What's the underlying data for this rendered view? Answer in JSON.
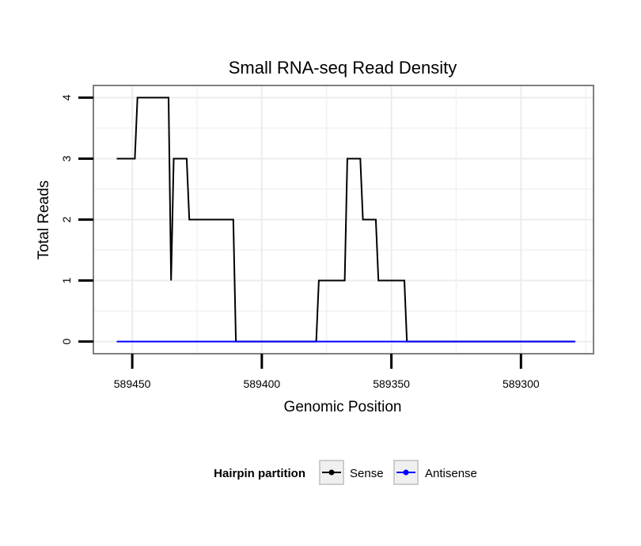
{
  "chart_data": {
    "type": "line",
    "title": "Small RNA-seq Read Density",
    "xlabel": "Genomic Position",
    "ylabel": "Total Reads",
    "x_reversed": true,
    "xlim": [
      589465,
      589272
    ],
    "ylim": [
      -0.2,
      4.2
    ],
    "x_ticks": [
      589450,
      589400,
      589350,
      589300
    ],
    "x_tick_labels": [
      "589450",
      "589400",
      "589350",
      "589300"
    ],
    "y_ticks": [
      0,
      1,
      2,
      3,
      4
    ],
    "y_tick_labels": [
      "0",
      "1",
      "2",
      "3",
      "4"
    ],
    "grid": true,
    "legend": {
      "title": "Hairpin partition",
      "placement": "bottom"
    },
    "series": [
      {
        "name": "Sense",
        "color": "#000000",
        "marker": "dot",
        "x": [
          589456,
          589449,
          589448,
          589436,
          589435,
          589434,
          589429,
          589428,
          589411,
          589410,
          589409,
          589379,
          589378,
          589368,
          589367,
          589362,
          589361,
          589356,
          589355,
          589345,
          589344,
          589335,
          589334,
          589280
        ],
        "y": [
          3,
          3,
          4,
          4,
          1,
          3,
          3,
          2,
          2,
          0,
          0,
          0,
          1,
          1,
          3,
          3,
          2,
          2,
          1,
          1,
          0,
          0,
          0,
          0
        ]
      },
      {
        "name": "Antisense",
        "color": "#0000ff",
        "marker": "dot",
        "x": [
          589456,
          589279
        ],
        "y": [
          0,
          0
        ]
      }
    ]
  }
}
